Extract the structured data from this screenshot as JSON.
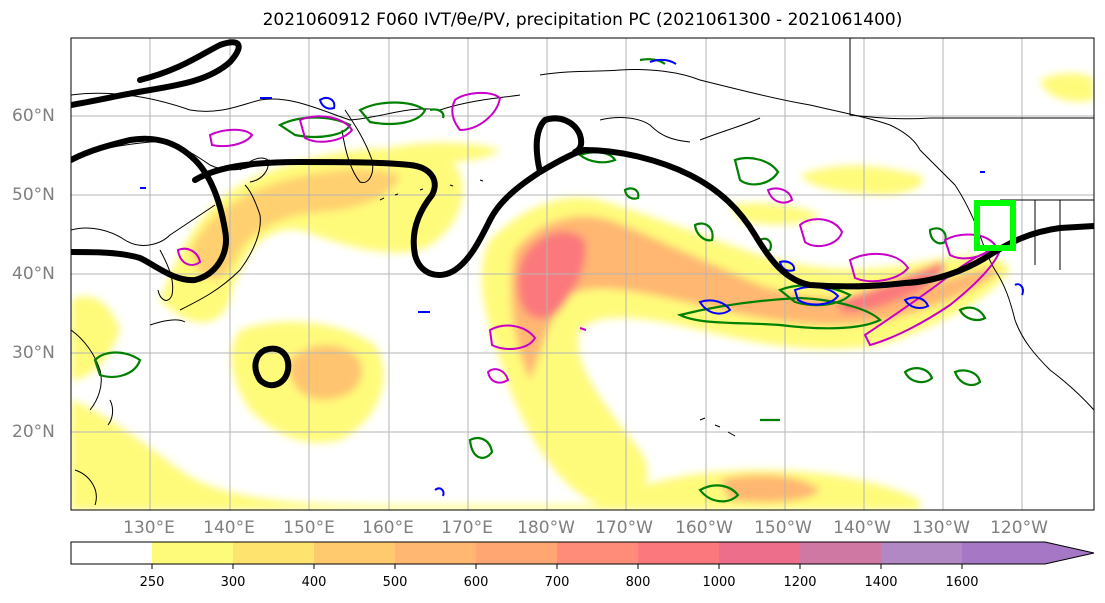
{
  "title": "2021060912 F060 IVT/θe/PV, precipitation PC (2021061300 - 2021061400)",
  "lat_labels": [
    {
      "text": "60°N",
      "lat": 60
    },
    {
      "text": "50°N",
      "lat": 50
    },
    {
      "text": "40°N",
      "lat": 40
    },
    {
      "text": "30°N",
      "lat": 30
    },
    {
      "text": "20°N",
      "lat": 20
    }
  ],
  "lon_labels": [
    {
      "text": "130°E",
      "lon": 130
    },
    {
      "text": "140°E",
      "lon": 140
    },
    {
      "text": "150°E",
      "lon": 150
    },
    {
      "text": "160°E",
      "lon": 160
    },
    {
      "text": "170°E",
      "lon": 170
    },
    {
      "text": "180°W",
      "lon": 180
    },
    {
      "text": "170°W",
      "lon": 190
    },
    {
      "text": "160°W",
      "lon": 200
    },
    {
      "text": "150°W",
      "lon": 210
    },
    {
      "text": "140°W",
      "lon": 220
    },
    {
      "text": "130°W",
      "lon": 230
    },
    {
      "text": "120°W",
      "lon": 240
    }
  ],
  "map_extent": {
    "lon_min": 120,
    "lon_max": 248,
    "lat_min": 10,
    "lat_max": 70
  },
  "colorbar": {
    "levels": [
      "250",
      "300",
      "400",
      "500",
      "600",
      "700",
      "800",
      "1000",
      "1200",
      "1400",
      "1600"
    ],
    "colors": [
      "#ffffff",
      "#fffb7a",
      "#ffe36f",
      "#ffca6e",
      "#ffb772",
      "#ffa673",
      "#ff8c78",
      "#fb797c",
      "#ec6e8a",
      "#cf78a3",
      "#b187c4",
      "#a577c4"
    ],
    "extend": "max"
  },
  "colors": {
    "pv_contour": "#000000",
    "theta_e_contour": "#008000",
    "precip_contour_magenta": "#c800c8",
    "precip_contour_blue": "#0000ff",
    "target_box": "#00ff00"
  }
}
